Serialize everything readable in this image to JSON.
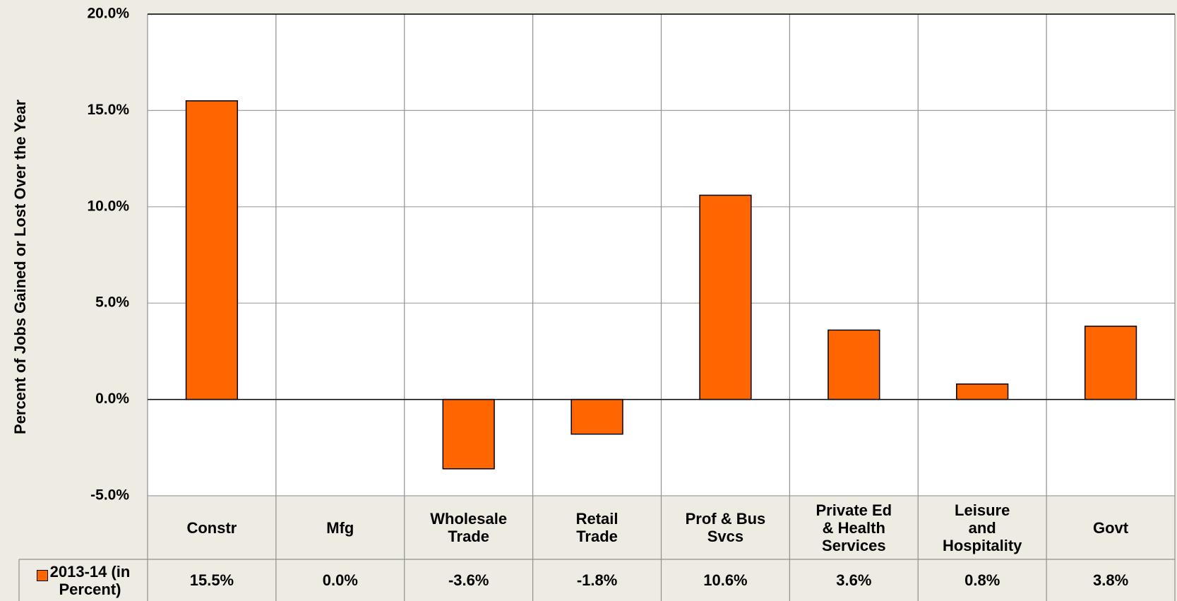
{
  "chart_data": {
    "type": "bar",
    "y_axis_label": "Percent of Jobs Gained or Lost Over the Year",
    "categories": [
      "Constr",
      "Mfg",
      "Wholesale\nTrade",
      "Retail\nTrade",
      "Prof & Bus\nSvcs",
      "Private Ed\n& Health\nServices",
      "Leisure\nand\nHospitality",
      "Govt"
    ],
    "series": [
      {
        "name": "2013-14 (in\nPercent)",
        "color": "#ff6600",
        "values": [
          15.5,
          0.0,
          -3.6,
          -1.8,
          10.6,
          3.6,
          0.8,
          3.8
        ],
        "value_labels": [
          "15.5%",
          "0.0%",
          "-3.6%",
          "-1.8%",
          "10.6%",
          "3.6%",
          "0.8%",
          "3.8%"
        ]
      }
    ],
    "ylim": [
      -5,
      20
    ],
    "yticks": [
      {
        "value": -5,
        "label": "-5.0%"
      },
      {
        "value": 0,
        "label": "0.0%"
      },
      {
        "value": 5,
        "label": "5.0%"
      },
      {
        "value": 10,
        "label": "10.0%"
      },
      {
        "value": 15,
        "label": "15.0%"
      },
      {
        "value": 20,
        "label": "20.0%"
      }
    ],
    "grid": true,
    "data_table": true
  }
}
